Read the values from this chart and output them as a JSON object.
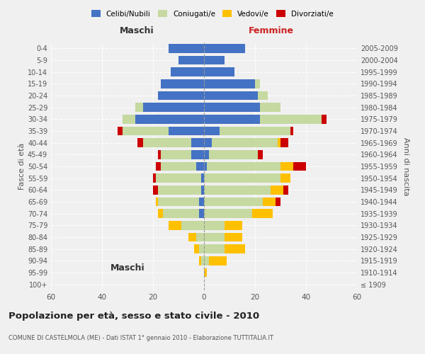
{
  "age_groups": [
    "100+",
    "95-99",
    "90-94",
    "85-89",
    "80-84",
    "75-79",
    "70-74",
    "65-69",
    "60-64",
    "55-59",
    "50-54",
    "45-49",
    "40-44",
    "35-39",
    "30-34",
    "25-29",
    "20-24",
    "15-19",
    "10-14",
    "5-9",
    "0-4"
  ],
  "birth_years": [
    "≤ 1909",
    "1910-1914",
    "1915-1919",
    "1920-1924",
    "1925-1929",
    "1930-1934",
    "1935-1939",
    "1940-1944",
    "1945-1949",
    "1950-1954",
    "1955-1959",
    "1960-1964",
    "1965-1969",
    "1970-1974",
    "1975-1979",
    "1980-1984",
    "1985-1989",
    "1990-1994",
    "1995-1999",
    "2000-2004",
    "2005-2009"
  ],
  "maschi": {
    "celibi": [
      0,
      0,
      0,
      0,
      0,
      0,
      2,
      2,
      1,
      1,
      3,
      5,
      5,
      14,
      27,
      24,
      18,
      17,
      13,
      10,
      14
    ],
    "coniugati": [
      0,
      0,
      1,
      2,
      3,
      9,
      14,
      16,
      17,
      18,
      14,
      12,
      19,
      18,
      5,
      3,
      0,
      0,
      0,
      0,
      0
    ],
    "vedovi": [
      0,
      0,
      1,
      2,
      3,
      5,
      2,
      1,
      0,
      0,
      0,
      0,
      0,
      0,
      0,
      0,
      0,
      0,
      0,
      0,
      0
    ],
    "divorziati": [
      0,
      0,
      0,
      0,
      0,
      0,
      0,
      0,
      2,
      1,
      2,
      1,
      2,
      2,
      0,
      0,
      0,
      0,
      0,
      0,
      0
    ]
  },
  "femmine": {
    "celibi": [
      0,
      0,
      0,
      0,
      0,
      0,
      0,
      0,
      0,
      0,
      1,
      2,
      3,
      6,
      22,
      22,
      21,
      20,
      12,
      8,
      16
    ],
    "coniugati": [
      0,
      0,
      2,
      8,
      8,
      8,
      19,
      23,
      26,
      30,
      29,
      19,
      26,
      28,
      24,
      8,
      4,
      2,
      0,
      0,
      0
    ],
    "vedovi": [
      0,
      1,
      7,
      8,
      7,
      7,
      8,
      5,
      5,
      4,
      5,
      0,
      1,
      0,
      0,
      0,
      0,
      0,
      0,
      0,
      0
    ],
    "divorziati": [
      0,
      0,
      0,
      0,
      0,
      0,
      0,
      2,
      2,
      0,
      5,
      2,
      3,
      1,
      2,
      0,
      0,
      0,
      0,
      0,
      0
    ]
  },
  "colors": {
    "celibi": "#4472c4",
    "coniugati": "#c5d9a0",
    "vedovi": "#ffc000",
    "divorziati": "#cc0000"
  },
  "xlim": 60,
  "title": "Popolazione per età, sesso e stato civile - 2010",
  "subtitle": "COMUNE DI CASTELMOLA (ME) - Dati ISTAT 1° gennaio 2010 - Elaborazione TUTTITALIA.IT",
  "ylabel_left": "Fasce di età",
  "ylabel_right": "Anni di nascita",
  "xlabel_left": "Maschi",
  "xlabel_right": "Femmine",
  "background_color": "#f0f0f0"
}
